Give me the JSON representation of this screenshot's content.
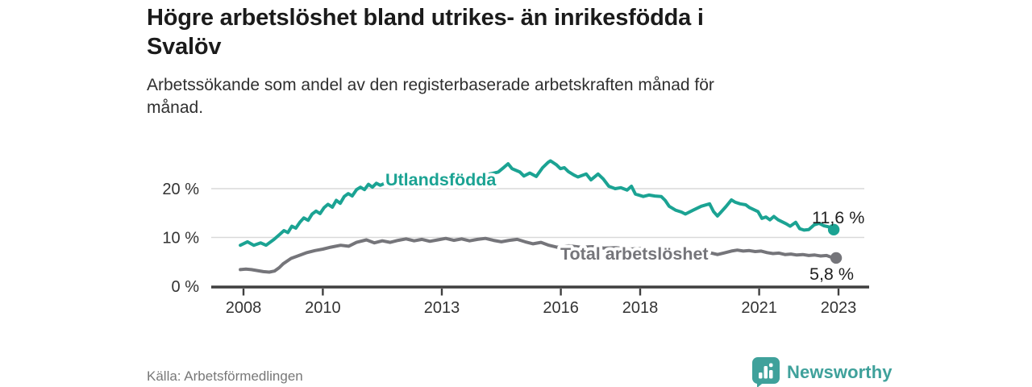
{
  "header": {
    "title": "Högre arbetslöshet bland utrikes- än inrikesfödda i\nSvalöv",
    "subtitle": "Arbetssökande som andel av den registerbaserade arbetskraften månad för\nmånad."
  },
  "footer": {
    "source": "Källa: Arbetsförmedlingen",
    "brand": "Newsworthy"
  },
  "colors": {
    "grid": "#d9d9d9",
    "axis": "#3f3f3f",
    "tick_text": "#333333",
    "value_label": "#1f1f1f",
    "brand_teal": "#3fa19b",
    "background": "#ffffff"
  },
  "chart_data": {
    "type": "line",
    "title": "Högre arbetslöshet bland utrikes- än inrikesfödda i Svalöv",
    "subtitle": "Arbetssökande som andel av den registerbaserade arbetskraften månad för månad.",
    "unit": "%",
    "xlim": [
      2007.9,
      2023.6
    ],
    "ylim": [
      0,
      27
    ],
    "grid": "horizontal",
    "legend": "inline-labels",
    "x_ticks": [
      2008,
      2010,
      2013,
      2016,
      2018,
      2021,
      2023
    ],
    "y_ticks": [
      {
        "value": 0,
        "label": "0 %"
      },
      {
        "value": 10,
        "label": "10 %"
      },
      {
        "value": 20,
        "label": "20 %"
      }
    ],
    "series": [
      {
        "name": "Utlandsfödda",
        "color": "#1ba393",
        "end_label": "11,6 %",
        "end_value": 11.6,
        "points": [
          [
            2007.92,
            8.4
          ],
          [
            2008.1,
            9.1
          ],
          [
            2008.26,
            8.4
          ],
          [
            2008.43,
            8.9
          ],
          [
            2008.57,
            8.4
          ],
          [
            2008.77,
            9.6
          ],
          [
            2008.91,
            10.6
          ],
          [
            2009.02,
            11.4
          ],
          [
            2009.12,
            11.0
          ],
          [
            2009.22,
            12.3
          ],
          [
            2009.32,
            11.9
          ],
          [
            2009.42,
            13.1
          ],
          [
            2009.52,
            14.0
          ],
          [
            2009.63,
            13.5
          ],
          [
            2009.73,
            14.8
          ],
          [
            2009.83,
            15.4
          ],
          [
            2009.93,
            14.9
          ],
          [
            2010.03,
            16.1
          ],
          [
            2010.13,
            16.8
          ],
          [
            2010.24,
            16.2
          ],
          [
            2010.34,
            17.6
          ],
          [
            2010.44,
            17.0
          ],
          [
            2010.54,
            18.4
          ],
          [
            2010.64,
            19.0
          ],
          [
            2010.74,
            18.5
          ],
          [
            2010.85,
            19.8
          ],
          [
            2010.95,
            20.3
          ],
          [
            2011.05,
            19.8
          ],
          [
            2011.15,
            20.9
          ],
          [
            2011.25,
            20.3
          ],
          [
            2011.35,
            21.1
          ],
          [
            2011.45,
            20.7
          ],
          [
            2011.56,
            21.1
          ],
          [
            2011.7,
            21.4
          ],
          [
            2011.85,
            21.0
          ],
          [
            2012.0,
            21.6
          ],
          [
            2012.2,
            21.2
          ],
          [
            2012.4,
            21.9
          ],
          [
            2012.6,
            21.5
          ],
          [
            2012.8,
            22.1
          ],
          [
            2013.0,
            22.5
          ],
          [
            2013.2,
            22.0
          ],
          [
            2013.4,
            22.6
          ],
          [
            2013.6,
            22.2
          ],
          [
            2013.8,
            22.8
          ],
          [
            2014.0,
            22.4
          ],
          [
            2014.2,
            23.0
          ],
          [
            2014.42,
            23.4
          ],
          [
            2014.57,
            24.4
          ],
          [
            2014.67,
            25.1
          ],
          [
            2014.77,
            24.1
          ],
          [
            2014.97,
            23.4
          ],
          [
            2015.07,
            22.6
          ],
          [
            2015.22,
            23.2
          ],
          [
            2015.38,
            22.5
          ],
          [
            2015.54,
            24.3
          ],
          [
            2015.68,
            25.4
          ],
          [
            2015.74,
            25.7
          ],
          [
            2015.89,
            24.9
          ],
          [
            2015.99,
            24.1
          ],
          [
            2016.09,
            24.3
          ],
          [
            2016.19,
            23.5
          ],
          [
            2016.33,
            22.8
          ],
          [
            2016.43,
            22.4
          ],
          [
            2016.64,
            23.0
          ],
          [
            2016.76,
            21.8
          ],
          [
            2016.94,
            23.0
          ],
          [
            2017.07,
            22.0
          ],
          [
            2017.21,
            20.5
          ],
          [
            2017.37,
            20.0
          ],
          [
            2017.51,
            20.2
          ],
          [
            2017.67,
            19.7
          ],
          [
            2017.78,
            20.5
          ],
          [
            2017.88,
            18.9
          ],
          [
            2018.08,
            18.4
          ],
          [
            2018.22,
            18.7
          ],
          [
            2018.37,
            18.5
          ],
          [
            2018.53,
            18.4
          ],
          [
            2018.63,
            17.6
          ],
          [
            2018.73,
            16.4
          ],
          [
            2018.89,
            15.6
          ],
          [
            2019.04,
            15.2
          ],
          [
            2019.14,
            14.8
          ],
          [
            2019.34,
            15.6
          ],
          [
            2019.54,
            16.4
          ],
          [
            2019.75,
            16.9
          ],
          [
            2019.85,
            15.3
          ],
          [
            2019.95,
            14.4
          ],
          [
            2020.05,
            15.3
          ],
          [
            2020.16,
            16.3
          ],
          [
            2020.3,
            17.7
          ],
          [
            2020.4,
            17.2
          ],
          [
            2020.52,
            16.9
          ],
          [
            2020.66,
            16.7
          ],
          [
            2020.76,
            16.1
          ],
          [
            2020.97,
            15.3
          ],
          [
            2021.07,
            13.9
          ],
          [
            2021.17,
            14.2
          ],
          [
            2021.27,
            13.6
          ],
          [
            2021.37,
            14.3
          ],
          [
            2021.48,
            13.6
          ],
          [
            2021.68,
            12.8
          ],
          [
            2021.78,
            12.3
          ],
          [
            2021.92,
            13.1
          ],
          [
            2022.02,
            11.8
          ],
          [
            2022.13,
            11.5
          ],
          [
            2022.25,
            11.6
          ],
          [
            2022.39,
            12.6
          ],
          [
            2022.51,
            12.9
          ],
          [
            2022.63,
            12.4
          ],
          [
            2022.74,
            12.2
          ],
          [
            2022.88,
            11.6
          ]
        ]
      },
      {
        "name": "Total arbetslöshet",
        "color": "#75757a",
        "end_label": "5,8 %",
        "end_value": 5.8,
        "points": [
          [
            2007.92,
            3.4
          ],
          [
            2008.06,
            3.5
          ],
          [
            2008.2,
            3.4
          ],
          [
            2008.35,
            3.2
          ],
          [
            2008.5,
            3.0
          ],
          [
            2008.65,
            2.9
          ],
          [
            2008.78,
            3.1
          ],
          [
            2008.9,
            3.8
          ],
          [
            2009.0,
            4.6
          ],
          [
            2009.2,
            5.7
          ],
          [
            2009.4,
            6.3
          ],
          [
            2009.6,
            6.9
          ],
          [
            2009.8,
            7.3
          ],
          [
            2010.0,
            7.6
          ],
          [
            2010.2,
            8.0
          ],
          [
            2010.45,
            8.4
          ],
          [
            2010.65,
            8.2
          ],
          [
            2010.85,
            9.0
          ],
          [
            2011.1,
            9.5
          ],
          [
            2011.3,
            8.9
          ],
          [
            2011.5,
            9.3
          ],
          [
            2011.7,
            9.0
          ],
          [
            2011.9,
            9.4
          ],
          [
            2012.1,
            9.7
          ],
          [
            2012.3,
            9.3
          ],
          [
            2012.5,
            9.6
          ],
          [
            2012.7,
            9.2
          ],
          [
            2012.9,
            9.5
          ],
          [
            2013.1,
            9.8
          ],
          [
            2013.3,
            9.4
          ],
          [
            2013.5,
            9.7
          ],
          [
            2013.7,
            9.3
          ],
          [
            2013.9,
            9.6
          ],
          [
            2014.1,
            9.8
          ],
          [
            2014.3,
            9.4
          ],
          [
            2014.5,
            9.1
          ],
          [
            2014.7,
            9.4
          ],
          [
            2014.9,
            9.6
          ],
          [
            2015.1,
            9.1
          ],
          [
            2015.3,
            8.7
          ],
          [
            2015.5,
            9.0
          ],
          [
            2015.7,
            8.4
          ],
          [
            2015.9,
            8.0
          ],
          [
            2016.2,
            8.3
          ],
          [
            2016.5,
            8.0
          ],
          [
            2016.8,
            8.1
          ],
          [
            2017.1,
            7.8
          ],
          [
            2017.4,
            7.9
          ],
          [
            2017.7,
            7.6
          ],
          [
            2018.0,
            7.7
          ],
          [
            2018.3,
            7.4
          ],
          [
            2018.6,
            7.5
          ],
          [
            2018.9,
            7.2
          ],
          [
            2019.2,
            7.0
          ],
          [
            2019.5,
            7.1
          ],
          [
            2019.8,
            6.8
          ],
          [
            2019.95,
            6.5
          ],
          [
            2020.1,
            6.8
          ],
          [
            2020.3,
            7.2
          ],
          [
            2020.45,
            7.4
          ],
          [
            2020.6,
            7.2
          ],
          [
            2020.75,
            7.3
          ],
          [
            2020.9,
            7.1
          ],
          [
            2021.05,
            7.2
          ],
          [
            2021.2,
            6.9
          ],
          [
            2021.35,
            6.7
          ],
          [
            2021.5,
            6.8
          ],
          [
            2021.65,
            6.5
          ],
          [
            2021.8,
            6.6
          ],
          [
            2021.95,
            6.4
          ],
          [
            2022.1,
            6.5
          ],
          [
            2022.25,
            6.3
          ],
          [
            2022.4,
            6.4
          ],
          [
            2022.55,
            6.2
          ],
          [
            2022.7,
            6.3
          ],
          [
            2022.8,
            6.0
          ],
          [
            2022.94,
            5.8
          ]
        ]
      }
    ]
  }
}
